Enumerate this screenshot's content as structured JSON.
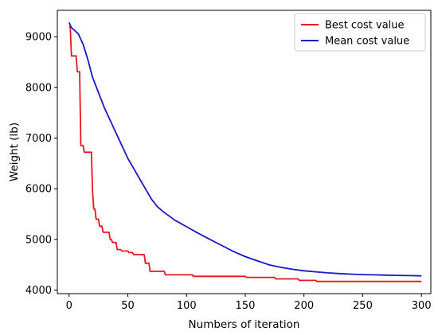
{
  "chart_data": {
    "type": "line",
    "title": "",
    "xlabel": "Numbers of iteration",
    "ylabel": "Weight (lb)",
    "xlim": [
      -10,
      308
    ],
    "ylim": [
      3930,
      9520
    ],
    "xticks": [
      0,
      50,
      100,
      150,
      200,
      250,
      300
    ],
    "yticks": [
      4000,
      5000,
      6000,
      7000,
      8000,
      9000
    ],
    "grid": false,
    "legend_position": "top-right",
    "series": [
      {
        "name": "Best cost value",
        "color": "#e8161c",
        "style": "step",
        "x": [
          0,
          1,
          2,
          6,
          7,
          9,
          10,
          12,
          13,
          19,
          20,
          21,
          22,
          23,
          25,
          26,
          28,
          29,
          34,
          35,
          36,
          37,
          40,
          41,
          44,
          45,
          50,
          51,
          54,
          55,
          64,
          65,
          68,
          69,
          81,
          82,
          105,
          106,
          150,
          151,
          175,
          176,
          195,
          196,
          210,
          211,
          300
        ],
        "y": [
          9200,
          9200,
          8620,
          8620,
          8310,
          8310,
          6850,
          6850,
          6720,
          6720,
          5950,
          5600,
          5600,
          5400,
          5400,
          5260,
          5260,
          5140,
          5140,
          5000,
          5000,
          4940,
          4940,
          4800,
          4800,
          4770,
          4770,
          4740,
          4740,
          4700,
          4700,
          4530,
          4530,
          4370,
          4370,
          4300,
          4300,
          4270,
          4270,
          4250,
          4250,
          4220,
          4220,
          4190,
          4190,
          4170,
          4170
        ]
      },
      {
        "name": "Mean cost value",
        "color": "#1717c9",
        "style": "line",
        "x": [
          0,
          2,
          5,
          8,
          12,
          16,
          20,
          25,
          30,
          35,
          40,
          45,
          50,
          55,
          60,
          65,
          70,
          75,
          80,
          90,
          100,
          110,
          120,
          130,
          140,
          150,
          160,
          170,
          180,
          190,
          200,
          210,
          220,
          230,
          240,
          250,
          260,
          270,
          280,
          290,
          300
        ],
        "y": [
          9280,
          9180,
          9120,
          9050,
          8850,
          8550,
          8200,
          7900,
          7600,
          7350,
          7100,
          6850,
          6600,
          6400,
          6200,
          6000,
          5800,
          5650,
          5550,
          5380,
          5250,
          5120,
          5000,
          4880,
          4760,
          4660,
          4580,
          4500,
          4450,
          4410,
          4380,
          4360,
          4340,
          4325,
          4315,
          4305,
          4300,
          4295,
          4290,
          4285,
          4280
        ]
      }
    ]
  }
}
